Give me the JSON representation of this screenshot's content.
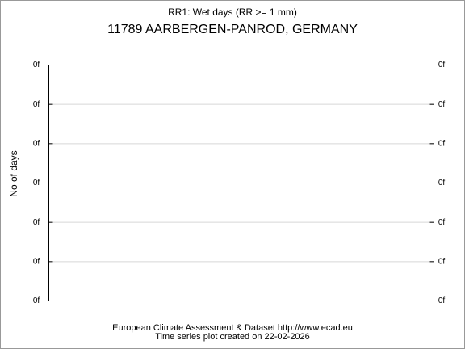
{
  "chart_data": {
    "type": "line",
    "title": "RR1: Wet days (RR >= 1 mm)",
    "subtitle": "11789 AARBERGEN-PANROD, GERMANY",
    "ylabel": "No of days",
    "footer": [
      "European Climate Assessment & Dataset  http://www.ecad.eu",
      "Time series plot created on 22-02-2026"
    ],
    "ylim": [
      0,
      6
    ],
    "yticks": [
      {
        "value": 0,
        "label": "0f"
      },
      {
        "value": 1,
        "label": "0f"
      },
      {
        "value": 2,
        "label": "0f"
      },
      {
        "value": 3,
        "label": "0f"
      },
      {
        "value": 4,
        "label": "0f"
      },
      {
        "value": 5,
        "label": "0f"
      },
      {
        "value": 6,
        "label": "0f"
      }
    ],
    "grid": true,
    "mirror_yticks": true
  }
}
